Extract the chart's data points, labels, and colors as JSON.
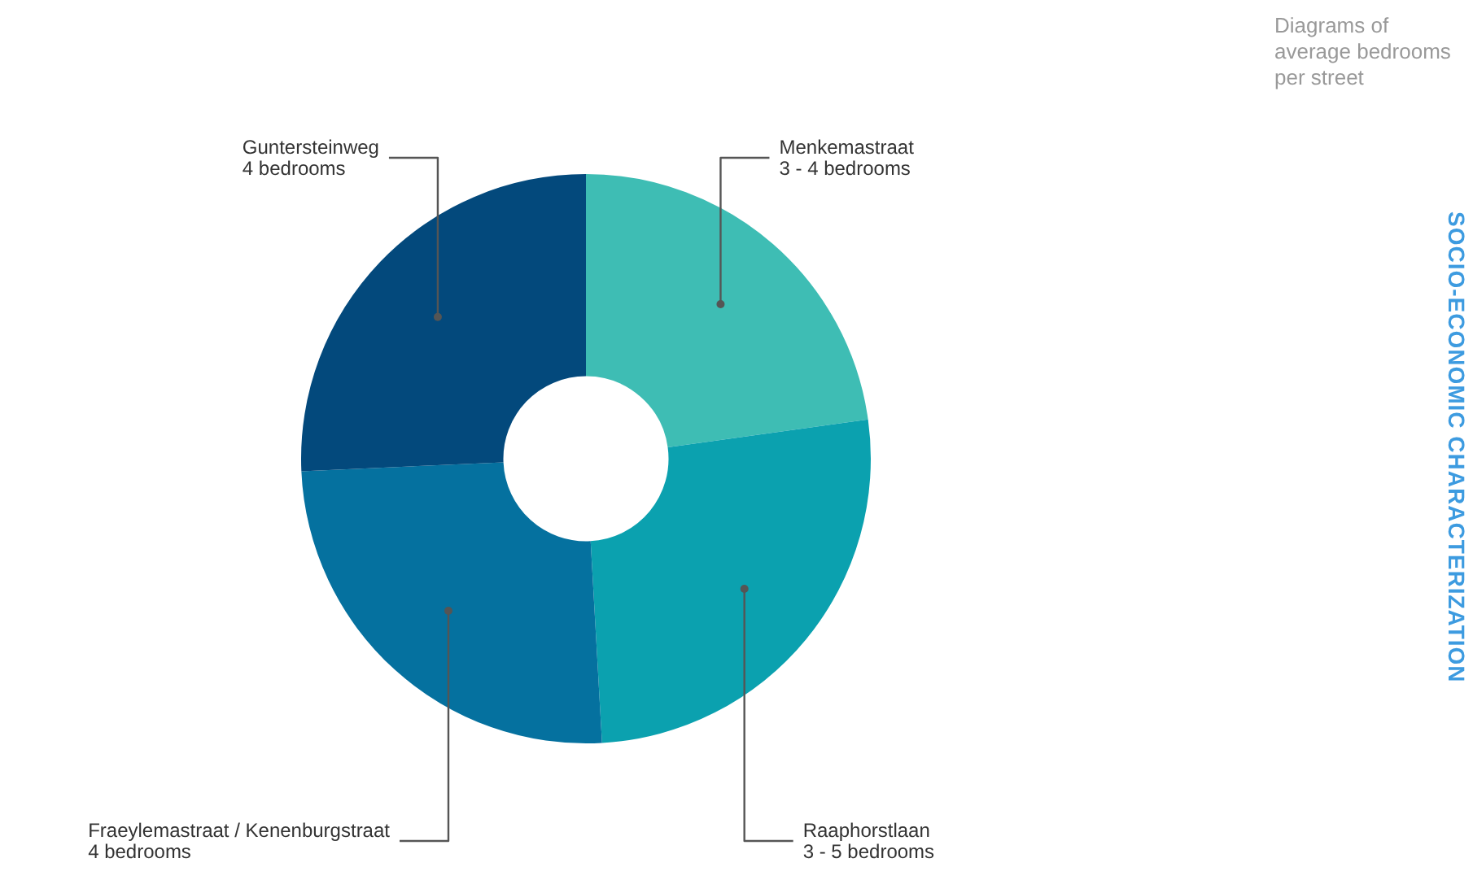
{
  "chart_data": {
    "type": "donut",
    "title": "Diagrams of average bedrooms per street",
    "categories": [
      "Menkemastraat\n3 - 4 bedrooms",
      "Raaphorstlaan\n3 - 5 bedrooms",
      "Fraeylemastraat / Kenenburgstraat\n4 bedrooms",
      "Guntersteinweg\n4 bedrooms"
    ],
    "values": [
      22.8,
      26.3,
      25.2,
      25.7
    ],
    "colors": [
      "#3ebdb4",
      "#0ba1af",
      "#05719f",
      "#03497c"
    ],
    "annotations": [
      "SOCIO-ECONOMIC CHARACTERIZATION"
    ],
    "legend": false
  }
}
